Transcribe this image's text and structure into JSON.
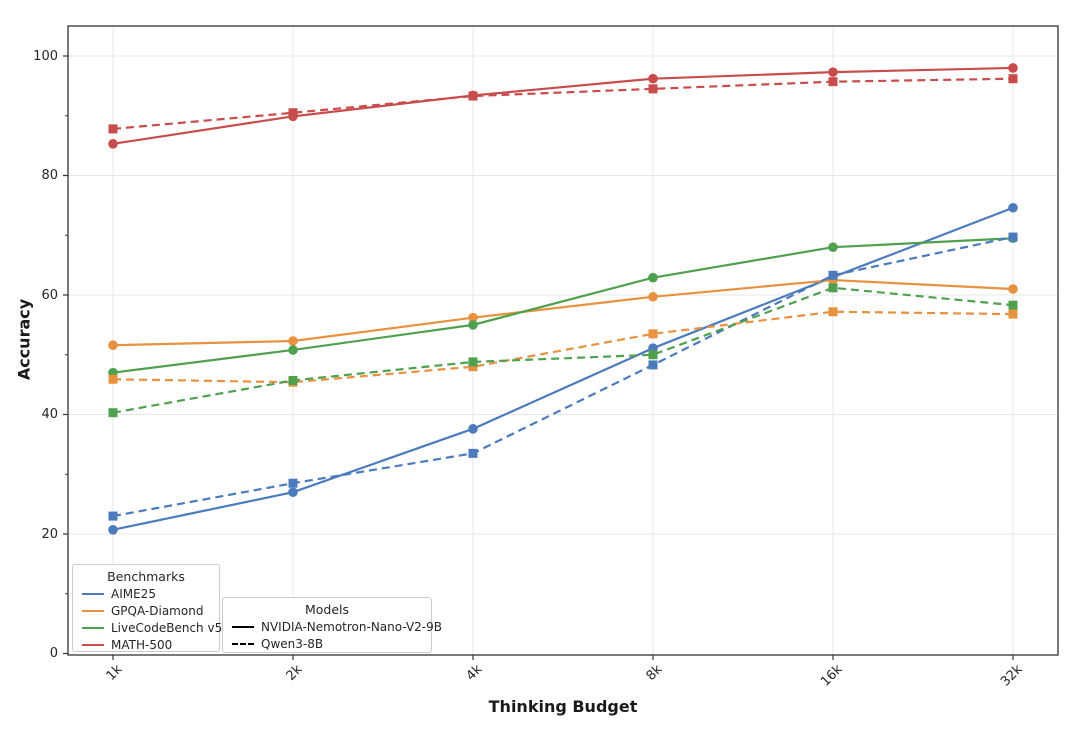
{
  "chart_data": {
    "type": "line",
    "title": "",
    "xlabel": "Thinking Budget",
    "ylabel": "Accuracy",
    "x_categories": [
      "1k",
      "2k",
      "4k",
      "8k",
      "16k",
      "32k"
    ],
    "y_ticks": [
      0,
      20,
      40,
      60,
      80,
      100
    ],
    "ylim": [
      0,
      105
    ],
    "grid": true,
    "x_scale": "log2-even-spacing",
    "colors": {
      "AIME25": "#4b7bbd",
      "GPQA-Diamond": "#e8913f",
      "LiveCodeBench v5": "#50a14f",
      "MATH-500": "#c94c4c",
      "grid": "#e7e7e7",
      "spine": "#333333",
      "text": "#262626"
    },
    "legend_benchmarks": {
      "title": "Benchmarks",
      "items": [
        {
          "label": "AIME25",
          "color": "#4b7bbd"
        },
        {
          "label": "GPQA-Diamond",
          "color": "#e8913f"
        },
        {
          "label": "LiveCodeBench v5",
          "color": "#50a14f"
        },
        {
          "label": "MATH-500",
          "color": "#c94c4c"
        }
      ]
    },
    "legend_models": {
      "title": "Models",
      "items": [
        {
          "label": "NVIDIA-Nemotron-Nano-V2-9B",
          "style": "solid"
        },
        {
          "label": "Qwen3-8B",
          "style": "dashed"
        }
      ]
    },
    "series": [
      {
        "benchmark": "AIME25",
        "model": "NVIDIA-Nemotron-Nano-V2-9B",
        "style": "solid",
        "marker": "circle",
        "color": "#4b7bbd",
        "values": [
          20.7,
          27.0,
          37.6,
          51.1,
          63.0,
          74.6
        ]
      },
      {
        "benchmark": "GPQA-Diamond",
        "model": "NVIDIA-Nemotron-Nano-V2-9B",
        "style": "solid",
        "marker": "circle",
        "color": "#e8913f",
        "values": [
          51.6,
          52.3,
          56.2,
          59.7,
          62.5,
          61.0
        ]
      },
      {
        "benchmark": "LiveCodeBench v5",
        "model": "NVIDIA-Nemotron-Nano-V2-9B",
        "style": "solid",
        "marker": "circle",
        "color": "#50a14f",
        "values": [
          47.0,
          50.8,
          55.0,
          62.9,
          68.0,
          69.5
        ]
      },
      {
        "benchmark": "MATH-500",
        "model": "NVIDIA-Nemotron-Nano-V2-9B",
        "style": "solid",
        "marker": "circle",
        "color": "#c94c4c",
        "values": [
          85.3,
          89.9,
          93.4,
          96.2,
          97.3,
          98.0
        ]
      },
      {
        "benchmark": "AIME25",
        "model": "Qwen3-8B",
        "style": "dashed",
        "marker": "square",
        "color": "#4b7bbd",
        "values": [
          23.0,
          28.5,
          33.5,
          48.3,
          63.3,
          69.7
        ]
      },
      {
        "benchmark": "GPQA-Diamond",
        "model": "Qwen3-8B",
        "style": "dashed",
        "marker": "square",
        "color": "#e8913f",
        "values": [
          45.9,
          45.4,
          48.0,
          53.5,
          57.2,
          56.8
        ]
      },
      {
        "benchmark": "LiveCodeBench v5",
        "model": "Qwen3-8B",
        "style": "dashed",
        "marker": "square",
        "color": "#50a14f",
        "values": [
          40.3,
          45.7,
          48.8,
          50.0,
          61.2,
          58.3
        ]
      },
      {
        "benchmark": "MATH-500",
        "model": "Qwen3-8B",
        "style": "dashed",
        "marker": "square",
        "color": "#c94c4c",
        "values": [
          87.8,
          90.5,
          93.3,
          94.5,
          95.7,
          96.2
        ]
      }
    ]
  }
}
